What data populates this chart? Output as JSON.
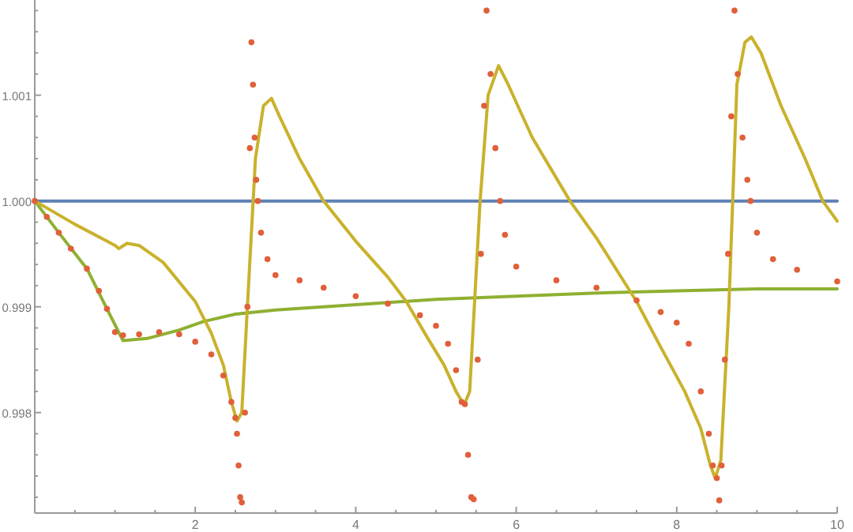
{
  "chart_data": {
    "type": "line",
    "xlim": [
      0,
      10
    ],
    "ylim": [
      0.99705,
      1.0019
    ],
    "xticks": [
      {
        "value": 0.5,
        "label": null
      },
      {
        "value": 1,
        "label": null
      },
      {
        "value": 1.5,
        "label": null
      },
      2,
      {
        "value": 2.5,
        "label": null
      },
      {
        "value": 3,
        "label": null
      },
      {
        "value": 3.5,
        "label": null
      },
      4,
      {
        "value": 4.5,
        "label": null
      },
      {
        "value": 5,
        "label": null
      },
      {
        "value": 5.5,
        "label": null
      },
      6,
      {
        "value": 6.5,
        "label": null
      },
      {
        "value": 7,
        "label": null
      },
      {
        "value": 7.5,
        "label": null
      },
      8,
      {
        "value": 8.5,
        "label": null
      },
      {
        "value": 9,
        "label": null
      },
      {
        "value": 9.5,
        "label": null
      },
      10
    ],
    "yticks": [
      {
        "value": 0.9972,
        "label": null
      },
      {
        "value": 0.9974,
        "label": null
      },
      {
        "value": 0.9976,
        "label": null
      },
      {
        "value": 0.9978,
        "label": null
      },
      0.998,
      {
        "value": 0.9982,
        "label": null
      },
      {
        "value": 0.9984,
        "label": null
      },
      {
        "value": 0.9986,
        "label": null
      },
      {
        "value": 0.9988,
        "label": null
      },
      0.999,
      {
        "value": 0.9992,
        "label": null
      },
      {
        "value": 0.9994,
        "label": null
      },
      {
        "value": 0.9996,
        "label": null
      },
      {
        "value": 0.9998,
        "label": null
      },
      {
        "value": 1,
        "label": "1.000"
      },
      {
        "value": 1.0002,
        "label": null
      },
      {
        "value": 1.0004,
        "label": null
      },
      {
        "value": 1.0006,
        "label": null
      },
      {
        "value": 1.0008,
        "label": null
      },
      1.001,
      {
        "value": 1.0012,
        "label": null
      },
      {
        "value": 1.0014,
        "label": null
      },
      {
        "value": 1.0016,
        "label": null
      },
      {
        "value": 1.0018,
        "label": null
      }
    ],
    "grid": false,
    "series": [
      {
        "color": "#5e81b5",
        "x": [
          0,
          10
        ],
        "values": [
          1,
          1
        ]
      },
      {
        "color": "#8fb032",
        "x": [
          0,
          0.3,
          0.65,
          0.9,
          1.1,
          1.4,
          1.8,
          2.1,
          2.5,
          3,
          4,
          5,
          6,
          7,
          8,
          9,
          10
        ],
        "values": [
          1,
          0.9997,
          0.99936,
          0.99898,
          0.99868,
          0.9987,
          0.99878,
          0.99886,
          0.99893,
          0.99897,
          0.99902,
          0.99907,
          0.9991,
          0.99913,
          0.99915,
          0.99917,
          0.99917
        ]
      },
      {
        "color": "#c9b22c",
        "x": [
          0,
          0.5,
          0.9,
          1,
          1.05,
          1.15,
          1.3,
          1.6,
          2,
          2.2,
          2.35,
          2.45,
          2.52,
          2.58,
          2.65,
          2.75,
          2.85,
          2.95,
          3.05,
          3.3,
          3.6,
          4,
          4.4,
          4.63,
          4.9,
          5.1,
          5.25,
          5.35,
          5.42,
          5.55,
          5.65,
          5.78,
          5.9,
          6.2,
          6.67,
          7,
          7.5,
          7.8,
          8.1,
          8.3,
          8.42,
          8.48,
          8.55,
          8.65,
          8.75,
          8.85,
          8.93,
          9.05,
          9.3,
          9.6,
          9.82,
          10
        ],
        "values": [
          1,
          0.99978,
          0.99962,
          0.99958,
          0.99955,
          0.9996,
          0.99958,
          0.99942,
          0.99905,
          0.99875,
          0.99845,
          0.9981,
          0.99792,
          0.998,
          0.999,
          1.0004,
          1.0009,
          1.00097,
          1.0008,
          1.0004,
          1,
          0.99962,
          0.99928,
          0.99905,
          0.9987,
          0.99845,
          0.9982,
          0.99807,
          0.9982,
          1,
          1.001,
          1.00128,
          1.0011,
          1.0006,
          1,
          0.99965,
          0.99905,
          0.99862,
          0.9982,
          0.99785,
          0.9975,
          0.99738,
          0.99755,
          0.999,
          1.0011,
          1.0015,
          1.00155,
          1.0014,
          1.0009,
          1.0004,
          1,
          0.99981
        ]
      },
      {
        "type": "scatter",
        "marker": "circle",
        "color": "#e0603a",
        "x": [
          0,
          0.15,
          0.3,
          0.45,
          0.65,
          0.8,
          0.9,
          1,
          1.1,
          1.3,
          1.55,
          1.8,
          2,
          2.2,
          2.35,
          2.45,
          2.5,
          2.52,
          2.54,
          2.56,
          2.58,
          2.62,
          2.65,
          2.68,
          2.7,
          2.72,
          2.74,
          2.76,
          2.78,
          2.82,
          2.9,
          3,
          3.3,
          3.6,
          4,
          4.4,
          4.8,
          5,
          5.15,
          5.25,
          5.32,
          5.36,
          5.4,
          5.44,
          5.47,
          5.52,
          5.56,
          5.6,
          5.63,
          5.68,
          5.74,
          5.8,
          5.86,
          6,
          6.5,
          7,
          7.5,
          7.8,
          8,
          8.15,
          8.3,
          8.4,
          8.45,
          8.5,
          8.53,
          8.56,
          8.6,
          8.64,
          8.68,
          8.72,
          8.76,
          8.82,
          8.88,
          8.92,
          9,
          9.2,
          9.5,
          10
        ],
        "values": [
          1,
          0.99985,
          0.9997,
          0.99955,
          0.99936,
          0.99915,
          0.99898,
          0.99876,
          0.99873,
          0.99874,
          0.99876,
          0.99874,
          0.99867,
          0.99855,
          0.99835,
          0.9981,
          0.99795,
          0.9978,
          0.9975,
          0.9972,
          0.99715,
          0.998,
          0.999,
          1.0005,
          1.0015,
          1.0011,
          1.0006,
          1.0002,
          1,
          0.9997,
          0.99945,
          0.9993,
          0.99925,
          0.99918,
          0.9991,
          0.99903,
          0.99892,
          0.99882,
          0.99865,
          0.9984,
          0.9981,
          0.99808,
          0.9976,
          0.9972,
          0.99718,
          0.9985,
          0.9995,
          1.0009,
          1.0018,
          1.0012,
          1.0005,
          1,
          0.99968,
          0.99938,
          0.99925,
          0.99918,
          0.99906,
          0.99895,
          0.99885,
          0.99865,
          0.9982,
          0.9978,
          0.9975,
          0.99738,
          0.99717,
          0.9975,
          0.9985,
          0.9995,
          1.0008,
          1.0018,
          1.0012,
          1.0006,
          1.0002,
          1,
          0.9997,
          0.99945,
          0.99935,
          0.99924
        ]
      }
    ]
  }
}
